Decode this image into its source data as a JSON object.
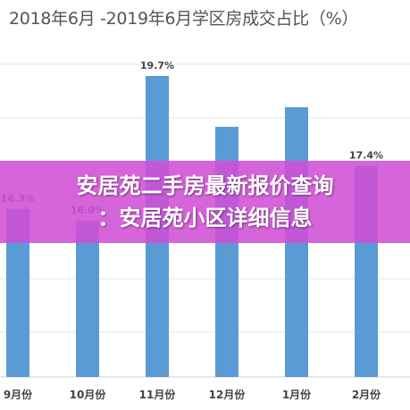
{
  "chart_data": {
    "type": "bar",
    "title": "2018年6月 -2019年6月学区房成交占比（%）",
    "categories": [
      "9月份",
      "10月份",
      "11月份",
      "12月份",
      "1月份",
      "2月份"
    ],
    "series": [
      {
        "values": [
          16.3,
          16.0,
          19.7,
          18.4,
          18.9,
          17.4
        ],
        "labels": [
          "16.3%",
          "16.0%",
          "19.7%",
          "",
          "",
          "17.4%"
        ]
      }
    ],
    "ylim": [
      12.0,
      20.5
    ],
    "bar_color": "#5b9bd5",
    "grid": true
  },
  "banner": {
    "line1": "安居苑二手房最新报价查询",
    "line2": "：安居苑小区详细信息",
    "color": "#d04fd5"
  }
}
